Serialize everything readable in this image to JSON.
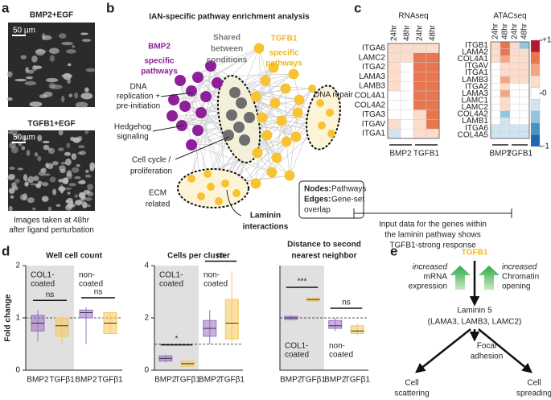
{
  "panel_a": {
    "label": "a",
    "top_title": "BMP2+EGF",
    "bottom_title": "TGFB1+EGF",
    "scale_bars": [
      "50 µm",
      "50 µm"
    ],
    "caption": [
      "Images taken at 48hr",
      "after ligand perturbation"
    ]
  },
  "panel_b": {
    "label": "b",
    "title": "IAN-specific pathway enrichment analysis",
    "bmp2": [
      "BMP2",
      "specific",
      "pathways"
    ],
    "shared": [
      "Shared",
      "between",
      "conditions"
    ],
    "tgfb1": [
      "TGFB1",
      "specific",
      "pathways"
    ],
    "dna_repair": [
      "DNA repair"
    ],
    "dna_replication": [
      "DNA",
      "replication +",
      "pre-initiation"
    ],
    "hedgehog": [
      "Hedgehog",
      "signaling"
    ],
    "cell_cycle": [
      "Cell cycle /",
      "proliferation"
    ],
    "ecm": [
      "ECM",
      "related"
    ],
    "laminin": [
      "Laminin",
      "interactions"
    ],
    "legend": {
      "nodes": [
        "Nodes:",
        "Pathways"
      ],
      "edges": [
        "Edges:",
        "Gene-set",
        "overlap"
      ]
    }
  },
  "panel_c": {
    "label": "c",
    "heatmaps": [
      {
        "title": "RNAseq",
        "columns": [
          "24hr",
          "48hr",
          "24hr",
          "48hr"
        ],
        "groups": [
          "BMP2",
          "TGFB1"
        ],
        "rows": [
          "ITGA6",
          "LAMC2",
          "ITGA2",
          "LAMA3",
          "LAMB3",
          "COL4A1",
          "COL4A2",
          "ITGA3",
          "ITGAV",
          "ITGA1"
        ],
        "values": [
          [
            0.3,
            0.3,
            0.3,
            0.3
          ],
          [
            0.3,
            0.3,
            0.7,
            0.7
          ],
          [
            0.3,
            0,
            0.7,
            0.7
          ],
          [
            0.3,
            0,
            0.7,
            0.7
          ],
          [
            0.3,
            0,
            0.7,
            0.7
          ],
          [
            0,
            0,
            0.7,
            0.7
          ],
          [
            0,
            0,
            0.7,
            0.7
          ],
          [
            0,
            0,
            0.3,
            0.7
          ],
          [
            0.3,
            0,
            0.3,
            0.7
          ],
          [
            -0.2,
            0,
            0.3,
            0.3
          ]
        ]
      },
      {
        "title": "ATACseq",
        "columns": [
          "24hr",
          "48hr",
          "24hr",
          "48hr"
        ],
        "groups": [
          "BMP2",
          "TGFB1"
        ],
        "rows": [
          "ITGB1",
          "LAMA2",
          "COL4A1",
          "ITGAV",
          "ITGA1",
          "LAMB3",
          "ITGA2",
          "LAMA3",
          "LAMC1",
          "LAMC2",
          "COL4A2",
          "LAMB1",
          "ITGA6",
          "COL4A5"
        ],
        "values": [
          [
            0.3,
            0.7,
            0.3,
            -0.5
          ],
          [
            0.3,
            0.7,
            0.3,
            0.3
          ],
          [
            0.3,
            0.5,
            0.3,
            0.3
          ],
          [
            0,
            0.3,
            0.3,
            0.3
          ],
          [
            0,
            0.3,
            0.3,
            0.3
          ],
          [
            0,
            0.5,
            0.3,
            0.3
          ],
          [
            0,
            0.3,
            0,
            0
          ],
          [
            0,
            0.5,
            0,
            0
          ],
          [
            0,
            0.3,
            0,
            0
          ],
          [
            0,
            0.3,
            0,
            0
          ],
          [
            0,
            -0.5,
            0,
            0
          ],
          [
            0,
            -0.3,
            0,
            0
          ],
          [
            -0.2,
            -0.2,
            -0.2,
            -0.2
          ],
          [
            -0.2,
            -0.2,
            -0.2,
            -0.2
          ]
        ]
      }
    ],
    "colorbar": {
      "lim": [
        -1,
        1
      ],
      "ticks": [
        {
          "value": 1,
          "label": "+1"
        },
        0,
        -1
      ],
      "colors": [
        "#2166ac",
        "#4393c3",
        "#92c5de",
        "#d1e5f0",
        "#ffffff",
        "#fcdccb",
        "#f4a582",
        "#e8764f",
        "#b2182b"
      ]
    },
    "caption": [
      "Input data for the genes within",
      "the laminin pathway shows",
      "TGFB1-strong response"
    ]
  },
  "panel_d": {
    "label": "d",
    "ylabel": "Fold change",
    "charts": [
      {
        "type": "box",
        "title": [
          "Well cell count"
        ],
        "ylim": [
          0,
          2
        ],
        "yticks": [
          0,
          1,
          2
        ],
        "reference": 1,
        "categories": [
          "BMP2",
          "TGFβ1",
          "BMP2",
          "TGFβ1"
        ],
        "colors": [
          "#9b6fc4",
          "#f7c65a",
          "#9b6fc4",
          "#f7c65a"
        ],
        "regions": [
          [
            "COL1-",
            "coated"
          ],
          [
            "non-",
            "coated"
          ]
        ],
        "region_labels": "top",
        "significance": [
          "ns",
          "ns"
        ],
        "boxes": [
          {
            "min": 0.55,
            "q1": 0.75,
            "median": 0.9,
            "q3": 1.05,
            "max": 1.15
          },
          {
            "min": 0.5,
            "q1": 0.65,
            "median": 0.85,
            "q3": 1.0,
            "max": 1.05
          },
          {
            "min": 0.5,
            "q1": 1.0,
            "median": 1.1,
            "q3": 1.15,
            "max": 1.2
          },
          {
            "min": 0.7,
            "q1": 0.7,
            "median": 0.9,
            "q3": 1.1,
            "max": 1.1
          }
        ]
      },
      {
        "type": "box",
        "title": [
          "Cells per cluster"
        ],
        "ylim": [
          0,
          4
        ],
        "yticks": [
          0,
          2,
          4
        ],
        "reference": 1,
        "categories": [
          "BMP2",
          "TGFβ1",
          "BMP2",
          "TGFβ1"
        ],
        "colors": [
          "#9b6fc4",
          "#f7c65a",
          "#9b6fc4",
          "#f7c65a"
        ],
        "regions": [
          [
            "COL1-",
            "coated"
          ],
          [
            "non-",
            "coated"
          ]
        ],
        "region_labels": "top",
        "significance": [
          "*",
          "ns"
        ],
        "boxes": [
          {
            "min": 0.3,
            "q1": 0.35,
            "median": 0.45,
            "q3": 0.55,
            "max": 0.6
          },
          {
            "min": 0.1,
            "q1": 0.15,
            "median": 0.25,
            "q3": 0.35,
            "max": 0.35
          },
          {
            "min": 1.0,
            "q1": 1.3,
            "median": 1.6,
            "q3": 1.9,
            "max": 2.3
          },
          {
            "min": 1.1,
            "q1": 1.2,
            "median": 1.8,
            "q3": 2.7,
            "max": 3.8
          }
        ]
      },
      {
        "type": "box",
        "title": [
          "Distance to second",
          "nearest neighbor"
        ],
        "ylim": [
          0,
          2
        ],
        "reference": 1,
        "categories": [
          "BMP2",
          "TGFβ1",
          "BMP2",
          "TGFβ1"
        ],
        "colors": [
          "#9b6fc4",
          "#f7c65a",
          "#9b6fc4",
          "#f7c65a"
        ],
        "regions": [
          [
            "COL1-",
            "coated"
          ],
          [
            "non-",
            "coated"
          ]
        ],
        "region_labels": "bottom",
        "significance": [
          "***",
          "ns"
        ],
        "boxes": [
          {
            "min": 0.95,
            "q1": 0.97,
            "median": 1.0,
            "q3": 1.03,
            "max": 1.05
          },
          {
            "min": 1.3,
            "q1": 1.32,
            "median": 1.35,
            "q3": 1.38,
            "max": 1.4
          },
          {
            "min": 0.75,
            "q1": 0.8,
            "median": 0.85,
            "q3": 0.95,
            "max": 1.0
          },
          {
            "min": 0.65,
            "q1": 0.7,
            "median": 0.75,
            "q3": 0.85,
            "max": 0.9
          }
        ]
      }
    ]
  },
  "panel_e": {
    "label": "e",
    "source": "TGFB1",
    "left": [
      "increased",
      "mRNA",
      "expression"
    ],
    "right": [
      "increased",
      "Chromatin",
      "opening"
    ],
    "target": [
      "Laminin 5",
      "(LAMA3, LAMB3, LAMC2)"
    ],
    "outcomes": [
      [
        "Cell",
        "scattering"
      ],
      [
        "Focal",
        "adhesion"
      ],
      [
        "Cell",
        "spreading"
      ]
    ]
  }
}
